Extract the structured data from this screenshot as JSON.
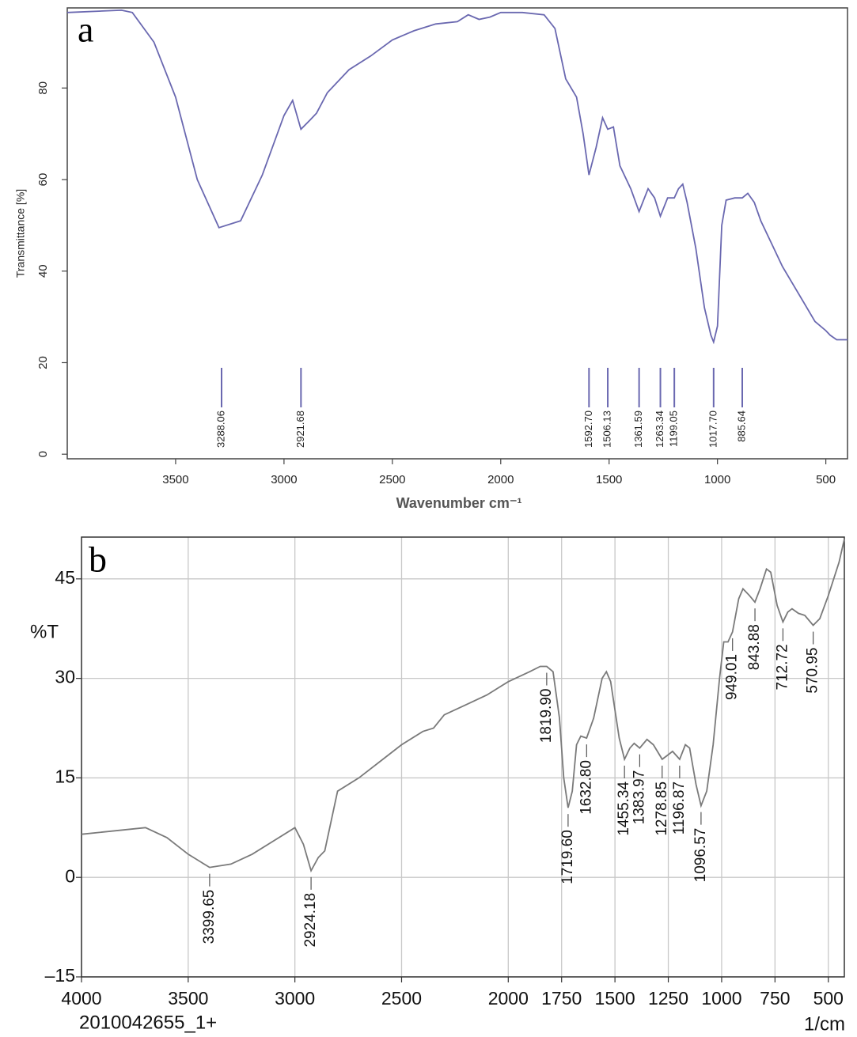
{
  "chart_data": [
    {
      "type": "line",
      "panel_label": "a",
      "ylabel": "Transmittance [%]",
      "xlabel": "Wavenumber cm⁻¹",
      "color": "#6a68b0",
      "grid": false,
      "xlim": [
        4000,
        400
      ],
      "ylim": [
        -1,
        97.5
      ],
      "xticks": [
        3500,
        3000,
        2500,
        2000,
        1500,
        1000,
        500
      ],
      "yticks": [
        0,
        20,
        40,
        60,
        80
      ],
      "x": [
        4000,
        3750,
        3700,
        3600,
        3500,
        3400,
        3300,
        3200,
        3100,
        3000,
        2960,
        2921.68,
        2880,
        2850,
        2800,
        2700,
        2600,
        2500,
        2400,
        2300,
        2200,
        2150,
        2100,
        2050,
        2000,
        1900,
        1800,
        1750,
        1700,
        1650,
        1620,
        1592.7,
        1560,
        1530,
        1506.13,
        1480,
        1450,
        1400,
        1361.59,
        1320,
        1290,
        1263.34,
        1230,
        1199.05,
        1180,
        1160,
        1140,
        1100,
        1060,
        1030,
        1017.7,
        1000,
        980,
        960,
        920,
        885.64,
        860,
        830,
        800,
        750,
        700,
        650,
        600,
        550,
        500,
        480,
        450,
        400
      ],
      "values": [
        96.5,
        97,
        96.5,
        90,
        78,
        60,
        49.5,
        51,
        61,
        74,
        77.3,
        71,
        73,
        74.5,
        79,
        84,
        87,
        90.5,
        92.5,
        94,
        94.5,
        96,
        95,
        95.5,
        96.5,
        96.5,
        96,
        93,
        82,
        78,
        70,
        61,
        67,
        73.5,
        71,
        71.5,
        63,
        58,
        53,
        58,
        56,
        52,
        56,
        56,
        58,
        59,
        55,
        45,
        32,
        26,
        24.5,
        28,
        50,
        55.5,
        56,
        56,
        57,
        55,
        51,
        46,
        41,
        37,
        33,
        29,
        27,
        26,
        25,
        25
      ],
      "peaks": [
        3288.06,
        2921.68,
        {
          "value": 1592.7,
          "label": "1592.70"
        },
        1506.13,
        1361.59,
        1263.34,
        1199.05,
        {
          "value": 1017.7,
          "label": "1017.70"
        },
        885.64
      ]
    },
    {
      "type": "line",
      "panel_label": "b",
      "ylabel": "%T",
      "xlabel": "1/cm",
      "sample_id": "2010042655_1+",
      "color": "#7a7a7a",
      "grid": true,
      "xscale": "ticks-even",
      "xlim": [
        4000,
        425
      ],
      "ylim": [
        -15,
        51.3
      ],
      "xticks": [
        4000,
        3500,
        3000,
        2500,
        2000,
        1750,
        1500,
        1250,
        1000,
        750,
        500
      ],
      "yticks": [
        {
          "value": -15,
          "label": "–15"
        },
        0,
        15,
        30,
        45
      ],
      "x": [
        4000,
        3700,
        3600,
        3500,
        3399.65,
        3300,
        3200,
        3100,
        3000,
        2960,
        2924.18,
        2890,
        2860,
        2820,
        2800,
        2700,
        2600,
        2500,
        2400,
        2350,
        2300,
        2200,
        2100,
        2000,
        1900,
        1850,
        1819.9,
        1790,
        1760,
        1740,
        1719.6,
        1700,
        1680,
        1660,
        1632.8,
        1600,
        1560,
        1540,
        1520,
        1480,
        1455.34,
        1430,
        1410,
        1383.97,
        1350,
        1320,
        1278.85,
        1250,
        1230,
        1196.87,
        1170,
        1150,
        1120,
        1096.57,
        1070,
        1040,
        1010,
        990,
        970,
        949.01,
        920,
        900,
        870,
        843.88,
        820,
        790,
        770,
        740,
        712.72,
        690,
        670,
        640,
        610,
        570.95,
        540,
        500,
        450,
        425
      ],
      "values": [
        6.5,
        7.5,
        6,
        3.5,
        1.5,
        2,
        3.5,
        5.5,
        7.5,
        5,
        1,
        3,
        4,
        10,
        13,
        15,
        17.5,
        20,
        22,
        22.5,
        24.5,
        26,
        27.5,
        29.5,
        31,
        31.8,
        31.8,
        31,
        24,
        15,
        10.5,
        13,
        20,
        21.3,
        21,
        24,
        30,
        31,
        29.5,
        21,
        17.8,
        19.5,
        20.2,
        19.5,
        20.8,
        20,
        17.8,
        18.5,
        19,
        17.8,
        20,
        19.5,
        14,
        10.8,
        13,
        20,
        30,
        35.5,
        35.5,
        37,
        42,
        43.5,
        42.5,
        41.5,
        43.5,
        46.5,
        46,
        41,
        38.5,
        40,
        40.5,
        39.8,
        39.5,
        38,
        39,
        42.5,
        47.5,
        51
      ],
      "peaks": [
        3399.65,
        2924.18,
        {
          "value": 1819.9,
          "label": "1819.90"
        },
        {
          "value": 1719.6,
          "label": "1719.60"
        },
        {
          "value": 1632.8,
          "label": "1632.80"
        },
        1455.34,
        1383.97,
        1278.85,
        1196.87,
        1096.57,
        949.01,
        843.88,
        712.72,
        570.95
      ]
    }
  ]
}
